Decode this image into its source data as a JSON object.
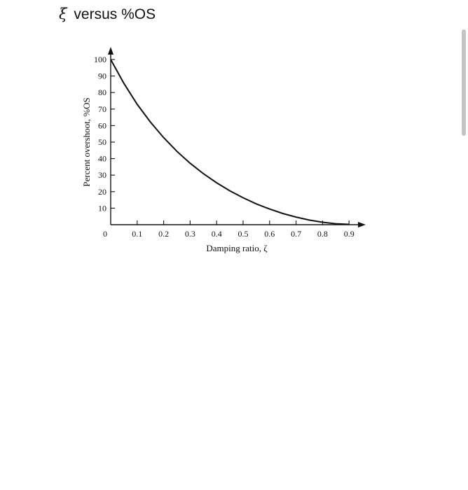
{
  "page": {
    "title_symbol": "ξ",
    "title_text": "versus %OS"
  },
  "chart_data": {
    "type": "line",
    "title": "",
    "xlabel": "Damping ratio, ζ",
    "ylabel": "Percent overshoot, %OS",
    "xlim": [
      0,
      1.0
    ],
    "ylim": [
      0,
      100
    ],
    "x_ticks": [
      0.1,
      0.2,
      0.3,
      0.4,
      0.5,
      0.6,
      0.7,
      0.8,
      0.9
    ],
    "x_tick_labels": [
      "0.1",
      "0.2",
      "0.3",
      "0.4",
      "0.5",
      "0.6",
      "0.7",
      "0.8",
      "0.9"
    ],
    "y_ticks": [
      10,
      20,
      30,
      40,
      50,
      60,
      70,
      80,
      90,
      100
    ],
    "y_tick_labels": [
      "10",
      "20",
      "30",
      "40",
      "50",
      "60",
      "70",
      "80",
      "90",
      "100"
    ],
    "origin_label": "0",
    "grid": false,
    "series": [
      {
        "x": [
          0,
          0.05,
          0.1,
          0.15,
          0.2,
          0.25,
          0.3,
          0.35,
          0.4,
          0.45,
          0.5,
          0.55,
          0.6,
          0.65,
          0.7,
          0.75,
          0.8,
          0.85,
          0.9
        ],
        "values": [
          100,
          85.5,
          72.9,
          62.1,
          52.7,
          44.4,
          37.2,
          30.9,
          25.4,
          20.5,
          16.3,
          12.6,
          9.5,
          6.8,
          4.6,
          2.8,
          1.5,
          0.6,
          0.2
        ],
        "color": "#111111"
      }
    ]
  }
}
